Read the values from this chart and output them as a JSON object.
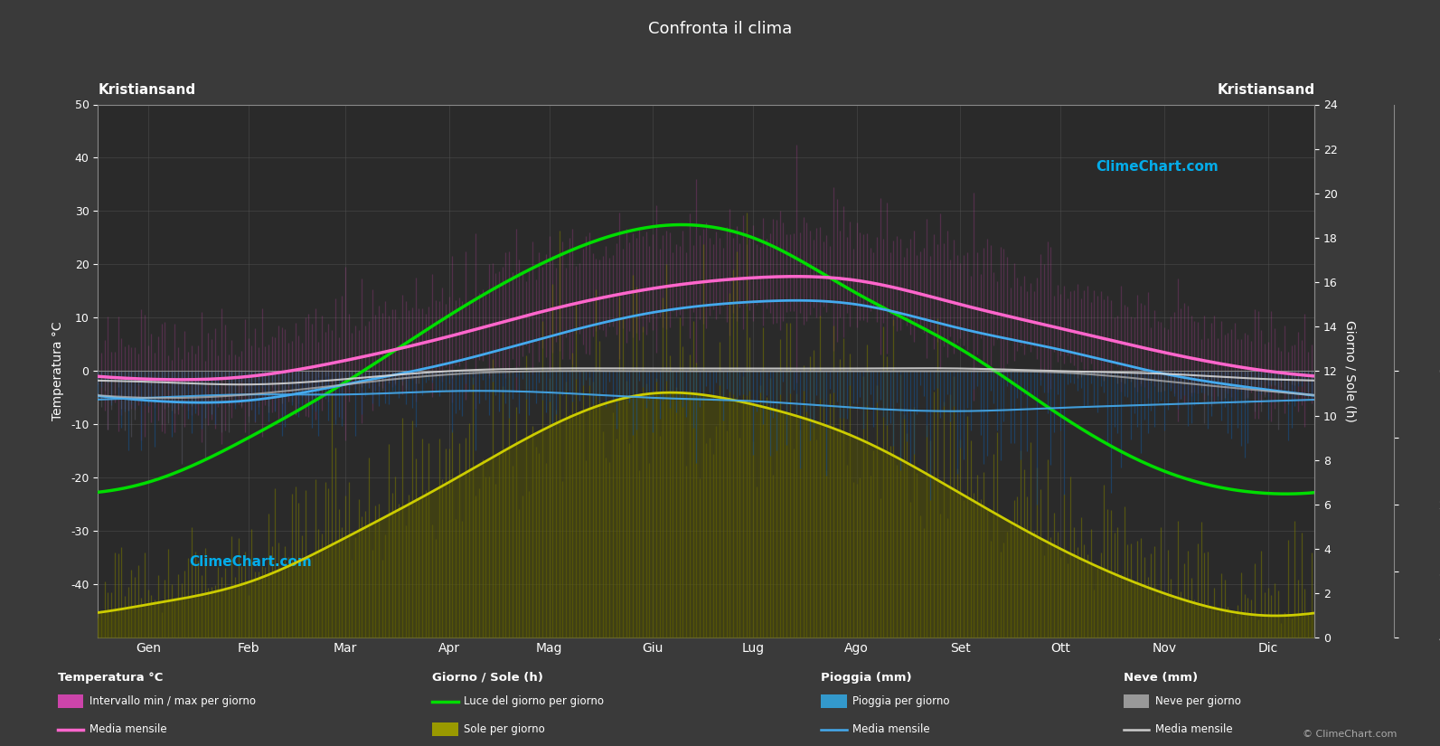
{
  "title": "Confronta il clima",
  "city_left": "Kristiansand",
  "city_right": "Kristiansand",
  "bg_color": "#3a3a3a",
  "plot_bg_color": "#2a2a2a",
  "months": [
    "Gen",
    "Feb",
    "Mar",
    "Apr",
    "Mag",
    "Giu",
    "Lug",
    "Ago",
    "Set",
    "Ott",
    "Nov",
    "Dic"
  ],
  "temp_mean_monthly": [
    -1.5,
    -1.0,
    2.0,
    6.5,
    11.5,
    15.5,
    17.5,
    17.0,
    12.5,
    8.0,
    3.5,
    0.0
  ],
  "temp_min_monthly": [
    -5.5,
    -5.5,
    -2.5,
    1.5,
    6.5,
    11.0,
    13.0,
    12.5,
    8.0,
    4.0,
    -0.5,
    -3.5
  ],
  "temp_max_monthly": [
    2.0,
    2.5,
    6.5,
    12.0,
    17.5,
    21.5,
    23.0,
    22.5,
    18.0,
    13.0,
    7.5,
    4.0
  ],
  "daylight_hours": [
    7.0,
    9.0,
    11.5,
    14.5,
    17.0,
    18.5,
    18.0,
    15.5,
    13.0,
    10.0,
    7.5,
    6.5
  ],
  "sunshine_hours": [
    1.5,
    2.5,
    4.5,
    7.0,
    9.5,
    11.0,
    10.5,
    9.0,
    6.5,
    4.0,
    2.0,
    1.0
  ],
  "rain_daily_mm": [
    4.0,
    3.5,
    3.5,
    3.0,
    3.2,
    4.0,
    4.5,
    5.5,
    6.0,
    5.5,
    5.0,
    4.5
  ],
  "snow_daily_mm": [
    4.0,
    3.5,
    2.0,
    0.5,
    0.0,
    0.0,
    0.0,
    0.0,
    0.0,
    0.2,
    1.5,
    3.0
  ],
  "temp_mean_color": "#ff66cc",
  "temp_min_color": "#44aaee",
  "temp_frost_color": "#cccccc",
  "daylight_color": "#00dd00",
  "sunshine_mean_color": "#cccc00",
  "rain_bar_color": "#1a4a7a",
  "rain_mean_color": "#44aaee",
  "snow_bar_color": "#555566",
  "snow_mean_color": "#bbbbbb",
  "temp_range_color": "#cc44aa",
  "sun_fill_color": "#666600",
  "grid_color": "#555555",
  "sun_right_ticks": [
    0,
    2,
    4,
    6,
    8,
    10,
    12,
    14,
    16,
    18,
    20,
    22,
    24
  ],
  "rain_right_ticks": [
    0,
    10,
    20,
    30,
    40
  ],
  "ylim": [
    -50,
    50
  ],
  "sun_ylim": [
    0,
    24
  ],
  "rain_ylim": [
    0,
    40
  ],
  "legend_section_headers": [
    "Temperatura °C",
    "Giorno / Sole (h)",
    "Pioggia (mm)",
    "Neve (mm)"
  ],
  "copyright_text": "© ClimeChart.com"
}
